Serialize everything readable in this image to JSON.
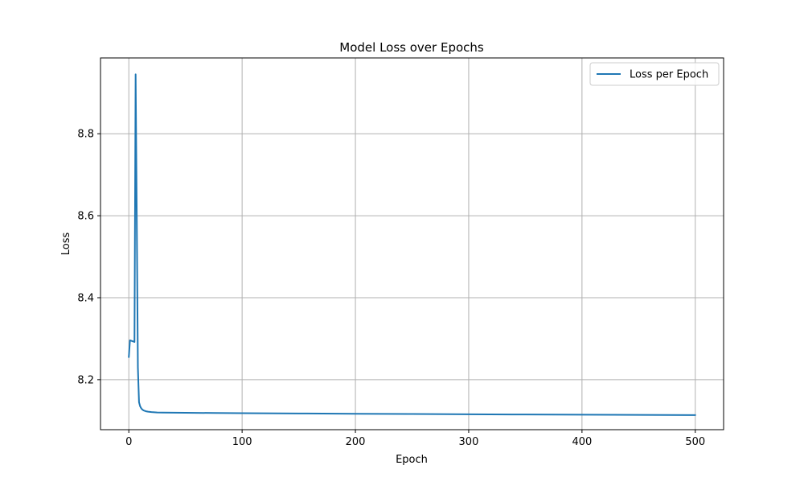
{
  "chart_data": {
    "type": "line",
    "title": "Model Loss over Epochs",
    "xlabel": "Epoch",
    "ylabel": "Loss",
    "xlim": [
      -25,
      525
    ],
    "ylim": [
      8.078,
      8.985
    ],
    "xticks": [
      0,
      100,
      200,
      300,
      400,
      500
    ],
    "yticks": [
      8.2,
      8.4,
      8.6,
      8.8
    ],
    "xtick_labels": [
      "0",
      "100",
      "200",
      "300",
      "400",
      "500"
    ],
    "ytick_labels": [
      "8.2",
      "8.4",
      "8.6",
      "8.8"
    ],
    "grid": true,
    "legend_position": "top-right",
    "series": [
      {
        "name": "Loss per Epoch",
        "color": "#1f77b4",
        "x": [
          0,
          1,
          2,
          3,
          4,
          5,
          6,
          7,
          8,
          9,
          10,
          11,
          12,
          13,
          14,
          15,
          17,
          20,
          25,
          30,
          40,
          50,
          75,
          100,
          150,
          200,
          250,
          300,
          350,
          400,
          450,
          500
        ],
        "y": [
          8.255,
          8.296,
          8.295,
          8.294,
          8.293,
          8.292,
          8.945,
          8.6,
          8.23,
          8.145,
          8.135,
          8.13,
          8.127,
          8.125,
          8.124,
          8.123,
          8.122,
          8.121,
          8.12,
          8.1198,
          8.1195,
          8.1192,
          8.1187,
          8.1182,
          8.1175,
          8.1168,
          8.1162,
          8.1156,
          8.115,
          8.1145,
          8.114,
          8.1135
        ]
      }
    ]
  }
}
